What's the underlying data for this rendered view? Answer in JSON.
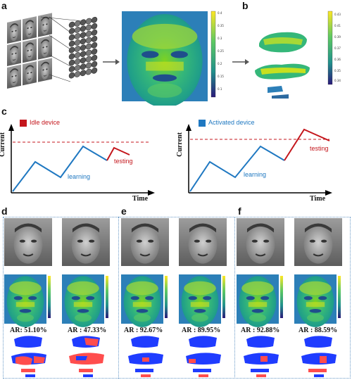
{
  "panels": {
    "a": {
      "label": "a",
      "colorbar_ticks": [
        "0.4",
        "0.35",
        "0.3",
        "0.25",
        "0.2",
        "0.15",
        "0.1"
      ]
    },
    "b": {
      "label": "b",
      "colorbar_ticks": [
        "0.43",
        "0.41",
        "0.39",
        "0.37",
        "0.36",
        "0.35",
        "0.34"
      ]
    },
    "c": {
      "label": "c",
      "left": {
        "legend": "Idle device",
        "legend_color": "#c4161c",
        "ylabel": "Current",
        "xlabel": "Time",
        "learning": "learning",
        "testing": "testing"
      },
      "right": {
        "legend": "Activated device",
        "legend_color": "#1f78c1",
        "ylabel": "Current",
        "xlabel": "Time",
        "learning": "learning",
        "testing": "testing"
      }
    },
    "d": {
      "label": "d",
      "ar_left": "AR: 51.10%",
      "ar_right": "AR : 47.33%"
    },
    "e": {
      "label": "e",
      "ar_left": "AR : 92.67%",
      "ar_right": "AR : 89.95%"
    },
    "f": {
      "label": "f",
      "ar_left": "AR : 92.88%",
      "ar_right": "AR : 88.59%"
    }
  },
  "colors": {
    "learning": "#1f78c1",
    "testing": "#c4161c",
    "threshold": "#c4161c"
  }
}
